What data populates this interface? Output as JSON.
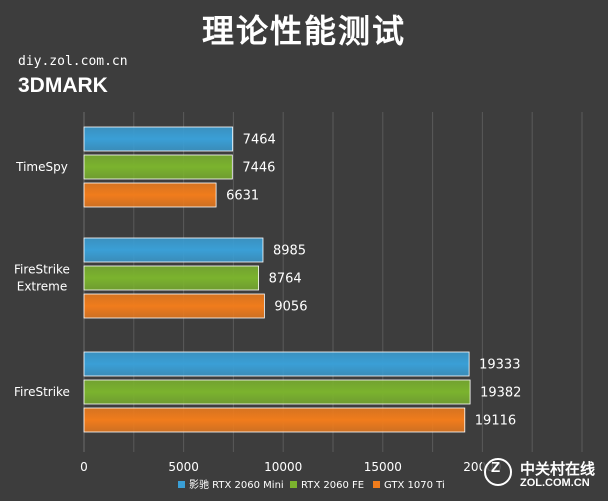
{
  "header": {
    "title": "理论性能测试",
    "site_url": "diy.zol.com.cn",
    "benchmark": "3DMARK"
  },
  "colors": {
    "background": "#3d3d3d",
    "gridline": "#5a5a5a",
    "text": "#ffffff"
  },
  "watermark": {
    "cn": "中关村在线",
    "en": "ZOL.COM.CN"
  },
  "chart_data": {
    "type": "bar",
    "orientation": "horizontal",
    "categories": [
      "TimeSpy",
      "FireStrike Extreme",
      "FireStrike"
    ],
    "category_lines": [
      [
        "TimeSpy"
      ],
      [
        "FireStrike",
        "Extreme"
      ],
      [
        "FireStrike"
      ]
    ],
    "series": [
      {
        "name": "影驰 RTX 2060 Mini",
        "color": "#3a9fd6",
        "values": [
          7464,
          8985,
          19333
        ]
      },
      {
        "name": "RTX 2060 FE",
        "color": "#7bb32e",
        "values": [
          7446,
          8764,
          19382
        ]
      },
      {
        "name": "GTX 1070 Ti",
        "color": "#f07c1c",
        "values": [
          6631,
          9056,
          19116
        ]
      }
    ],
    "xlim": [
      0,
      25000
    ],
    "xticks": [
      0,
      5000,
      10000,
      15000,
      20000
    ],
    "grid": true,
    "legend": "bottom",
    "data_labels": true
  }
}
